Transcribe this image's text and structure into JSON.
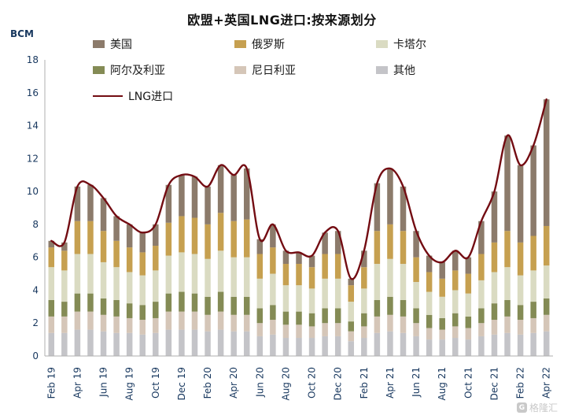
{
  "title": "欧盟+英国LNG进口:按来源划分",
  "y_axis_label": "BCM",
  "watermark": "格隆汇",
  "colors": {
    "axis_text": "#17375E",
    "axis_line": "#AFAFAF",
    "title": "#111111"
  },
  "chart_data": {
    "type": "bar",
    "subtype": "stacked-bar-with-line-overlay",
    "title": "欧盟+英国LNG进口:按来源划分",
    "ylabel": "BCM",
    "ylim": [
      0,
      18
    ],
    "yticks": [
      0,
      2,
      4,
      6,
      8,
      10,
      12,
      14,
      16,
      18
    ],
    "grid": false,
    "legend_position": "top",
    "x_tick_every": 2,
    "x_tick_labels": [
      "Feb 19",
      "Apr 19",
      "Jun 19",
      "Aug 19",
      "Oct 19",
      "Dec 19",
      "Feb 20",
      "Apr 20",
      "Jun 20",
      "Aug 20",
      "Oct 20",
      "Dec 20",
      "Feb 21",
      "Apr 21",
      "Jun 21",
      "Aug 21",
      "Oct 21",
      "Dec 21",
      "Feb 22",
      "Apr 22"
    ],
    "categories": [
      "Feb 19",
      "Mar 19",
      "Apr 19",
      "May 19",
      "Jun 19",
      "Jul 19",
      "Aug 19",
      "Sep 19",
      "Oct 19",
      "Nov 19",
      "Dec 19",
      "Jan 20",
      "Feb 20",
      "Mar 20",
      "Apr 20",
      "May 20",
      "Jun 20",
      "Jul 20",
      "Aug 20",
      "Sep 20",
      "Oct 20",
      "Nov 20",
      "Dec 20",
      "Jan 21",
      "Feb 21",
      "Mar 21",
      "Apr 21",
      "May 21",
      "Jun 21",
      "Jul 21",
      "Aug 21",
      "Sep 21",
      "Oct 21",
      "Nov 21",
      "Dec 21",
      "Jan 22",
      "Feb 22",
      "Mar 22",
      "Apr 22"
    ],
    "series": [
      {
        "name": "美国",
        "color": "#8C7B6B",
        "values": [
          0.4,
          0.5,
          2.1,
          2.2,
          2.0,
          1.5,
          1.4,
          1.2,
          1.3,
          2.3,
          2.5,
          2.5,
          2.3,
          2.9,
          2.8,
          3.1,
          0.9,
          1.4,
          0.8,
          0.7,
          0.7,
          1.3,
          1.4,
          0.4,
          1.0,
          2.9,
          3.4,
          2.7,
          1.6,
          1.0,
          1.0,
          1.2,
          1.0,
          2.0,
          3.1,
          5.8,
          4.7,
          5.5,
          7.7
        ]
      },
      {
        "name": "俄罗斯",
        "color": "#C6A050",
        "values": [
          1.2,
          1.2,
          2.0,
          2.0,
          1.9,
          1.6,
          1.5,
          1.4,
          1.5,
          2.0,
          2.2,
          2.2,
          2.1,
          2.3,
          2.2,
          2.3,
          1.5,
          1.6,
          1.3,
          1.3,
          1.3,
          1.5,
          1.5,
          1.0,
          1.3,
          2.0,
          2.1,
          2.0,
          1.5,
          1.2,
          1.1,
          1.2,
          1.2,
          1.6,
          1.8,
          2.2,
          2.0,
          2.1,
          2.4
        ]
      },
      {
        "name": "卡塔尔",
        "color": "#DADBC2",
        "values": [
          2.0,
          1.9,
          2.4,
          2.4,
          2.2,
          2.0,
          1.9,
          1.8,
          1.9,
          2.3,
          2.4,
          2.4,
          2.3,
          2.5,
          2.4,
          2.4,
          1.8,
          1.9,
          1.6,
          1.6,
          1.5,
          1.8,
          1.8,
          1.2,
          1.5,
          2.2,
          2.3,
          2.2,
          1.6,
          1.4,
          1.3,
          1.4,
          1.4,
          1.7,
          1.9,
          2.0,
          1.8,
          1.9,
          2.0
        ]
      },
      {
        "name": "阿尔及利亚",
        "color": "#848B55",
        "values": [
          1.0,
          0.9,
          1.1,
          1.1,
          1.0,
          1.0,
          0.9,
          0.9,
          1.0,
          1.1,
          1.2,
          1.1,
          1.1,
          1.2,
          1.1,
          1.1,
          0.9,
          0.9,
          0.8,
          0.8,
          0.8,
          0.9,
          0.9,
          0.6,
          0.8,
          1.0,
          1.1,
          1.0,
          0.9,
          0.8,
          0.7,
          0.8,
          0.7,
          0.9,
          1.0,
          1.0,
          0.9,
          1.0,
          1.0
        ]
      },
      {
        "name": "尼日利亚",
        "color": "#D5C6B8",
        "values": [
          1.0,
          1.0,
          1.1,
          1.1,
          1.0,
          1.0,
          0.9,
          0.9,
          0.9,
          1.1,
          1.1,
          1.1,
          1.0,
          1.1,
          1.0,
          1.0,
          0.8,
          0.9,
          0.8,
          0.8,
          0.7,
          0.8,
          0.8,
          0.6,
          0.7,
          1.0,
          1.0,
          1.0,
          0.8,
          0.7,
          0.6,
          0.7,
          0.7,
          0.8,
          0.9,
          1.0,
          0.9,
          0.9,
          1.0
        ]
      },
      {
        "name": "其他",
        "color": "#C4C4C8",
        "values": [
          1.4,
          1.4,
          1.6,
          1.6,
          1.5,
          1.4,
          1.4,
          1.3,
          1.4,
          1.6,
          1.6,
          1.6,
          1.5,
          1.6,
          1.5,
          1.5,
          1.2,
          1.3,
          1.1,
          1.1,
          1.1,
          1.2,
          1.2,
          0.9,
          1.1,
          1.4,
          1.5,
          1.4,
          1.2,
          1.0,
          1.0,
          1.1,
          1.0,
          1.2,
          1.3,
          1.4,
          1.3,
          1.4,
          1.5
        ]
      }
    ],
    "line": {
      "name": "LNG进口",
      "color": "#730C12",
      "values": [
        7.0,
        6.9,
        10.3,
        10.4,
        9.6,
        8.5,
        8.0,
        7.5,
        8.0,
        10.4,
        11.0,
        10.9,
        10.3,
        11.6,
        11.0,
        11.4,
        7.1,
        8.0,
        6.4,
        6.3,
        6.1,
        7.5,
        7.6,
        4.7,
        6.4,
        10.5,
        11.4,
        10.3,
        7.6,
        6.1,
        5.7,
        6.4,
        6.0,
        8.2,
        10.0,
        13.4,
        11.6,
        12.8,
        15.6
      ]
    }
  }
}
